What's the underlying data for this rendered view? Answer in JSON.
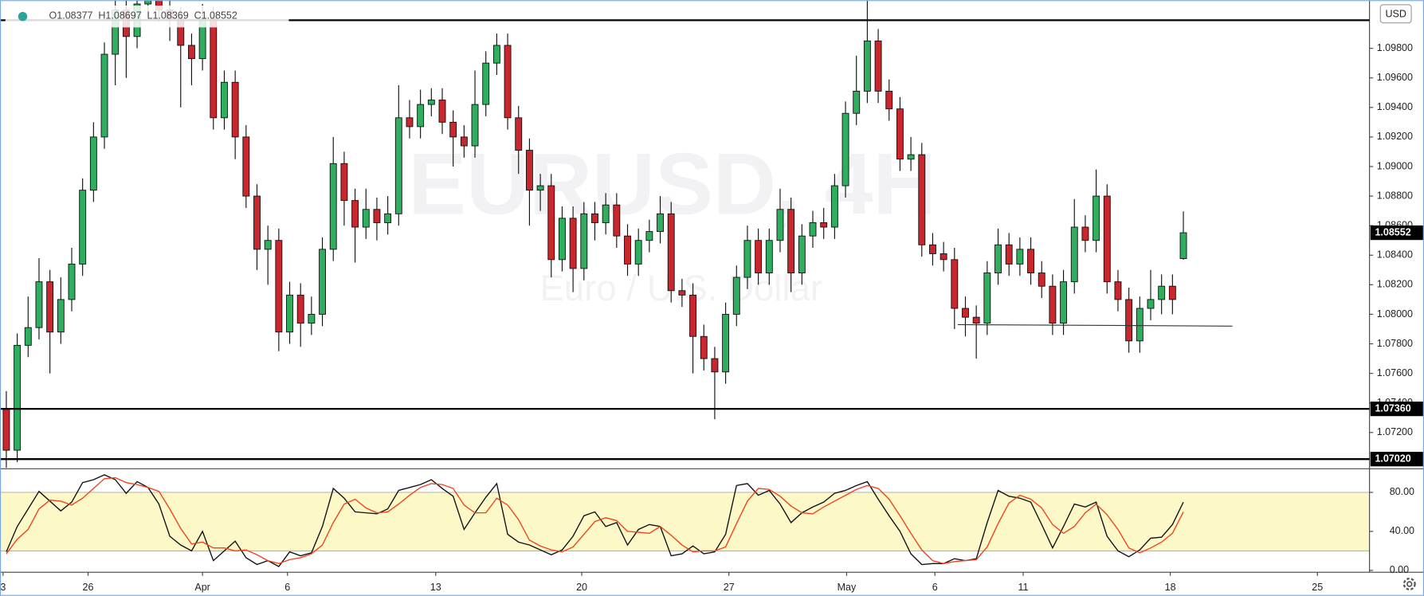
{
  "chart_data": [
    {
      "type": "candlestick",
      "watermark": "EURUSD, 4H",
      "watermark_subtitle": "Euro / U.S. Dollar",
      "ohlc_labels": [
        "O",
        "H",
        "L",
        "C"
      ],
      "currency": "USD",
      "up_color": "#2fae5f",
      "down_color": "#c9272d",
      "xlim": [
        -0.58,
        125.08
      ],
      "ylim": [
        1.06961,
        1.10126
      ],
      "yticks": [
        {
          "value": 1.072,
          "label": "1.07200"
        },
        {
          "value": 1.074,
          "label": "1.07400"
        },
        {
          "value": 1.076,
          "label": "1.07600"
        },
        {
          "value": 1.078,
          "label": "1.07800"
        },
        {
          "value": 1.08,
          "label": "1.08000"
        },
        {
          "value": 1.082,
          "label": "1.08200"
        },
        {
          "value": 1.084,
          "label": "1.08400"
        },
        {
          "value": 1.086,
          "label": "1.08600"
        },
        {
          "value": 1.088,
          "label": "1.08800"
        },
        {
          "value": 1.09,
          "label": "1.09000"
        },
        {
          "value": 1.092,
          "label": "1.09200"
        },
        {
          "value": 1.094,
          "label": "1.09400"
        },
        {
          "value": 1.096,
          "label": "1.09600"
        },
        {
          "value": 1.098,
          "label": "1.09800"
        }
      ],
      "levels": [
        {
          "value": 1.0736,
          "label": "1.07360"
        },
        {
          "value": 1.0702,
          "label": "1.07020"
        },
        {
          "value": 1.0999
        }
      ],
      "trendline": {
        "x": [
          87.3,
          112.5
        ],
        "y": [
          1.0793,
          1.0792
        ]
      },
      "open": [
        1.0736,
        1.0708,
        1.0779,
        1.0791,
        1.0822,
        1.0788,
        1.081,
        1.0834,
        1.0884,
        1.092,
        1.0976,
        1.1006,
        1.0988,
        1.101,
        1.1016,
        1.1006,
        1.1,
        1.0982,
        1.0973,
        1.1,
        1.0933,
        1.0957,
        1.092,
        1.088,
        1.0844,
        1.085,
        1.0788,
        1.0813,
        1.0794,
        1.08,
        1.0844,
        1.0902,
        1.0877,
        1.0859,
        1.0871,
        1.0862,
        1.0868,
        1.0933,
        1.0927,
        1.0942,
        1.0945,
        1.093,
        1.092,
        1.0914,
        1.0942,
        1.097,
        1.0982,
        1.0933,
        1.0911,
        1.0884,
        1.0887,
        1.0837,
        1.0865,
        1.0831,
        1.0868,
        1.0862,
        1.0874,
        1.0853,
        1.0834,
        1.085,
        1.0856,
        1.0868,
        1.0816,
        1.0813,
        1.0785,
        1.077,
        1.0761,
        1.08,
        1.0825,
        1.085,
        1.0828,
        1.085,
        1.0871,
        1.0828,
        1.0853,
        1.0862,
        1.0859,
        1.0887,
        1.0936,
        1.0951,
        1.0985,
        1.0951,
        1.0939,
        1.0905,
        1.0908,
        1.0847,
        1.0841,
        1.0837,
        1.0804,
        1.0798,
        1.0794,
        1.0828,
        1.0847,
        1.0834,
        1.0844,
        1.0828,
        1.0819,
        1.0794,
        1.0822,
        1.0859,
        1.085,
        1.088,
        1.0822,
        1.081,
        1.0782,
        1.0804,
        1.081,
        1.0819,
        1.08377
      ],
      "high": [
        1.0748,
        1.0787,
        1.0812,
        1.0838,
        1.083,
        1.0825,
        1.0845,
        1.0892,
        1.093,
        1.0984,
        1.1014,
        1.1014,
        1.1018,
        1.1024,
        1.1024,
        1.1014,
        1.1008,
        1.099,
        1.101,
        1.1008,
        1.0965,
        1.0965,
        1.0928,
        1.0888,
        1.086,
        1.0858,
        1.0822,
        1.0821,
        1.0812,
        1.0852,
        1.092,
        1.091,
        1.0885,
        1.0885,
        1.0879,
        1.088,
        1.0955,
        1.0945,
        1.0952,
        1.0953,
        1.0953,
        1.0938,
        1.0928,
        1.0965,
        1.0978,
        1.099,
        1.099,
        1.0941,
        1.0919,
        1.0895,
        1.0895,
        1.0873,
        1.0873,
        1.0876,
        1.0876,
        1.0882,
        1.0882,
        1.0861,
        1.0858,
        1.0864,
        1.088,
        1.0876,
        1.0824,
        1.0821,
        1.0793,
        1.0778,
        1.0808,
        1.0833,
        1.086,
        1.0858,
        1.0858,
        1.0885,
        1.0879,
        1.0861,
        1.087,
        1.0872,
        1.0895,
        1.0944,
        1.0975,
        1.1018,
        1.0993,
        1.0959,
        1.0947,
        1.092,
        1.0916,
        1.0855,
        1.0849,
        1.0845,
        1.0812,
        1.0806,
        1.0836,
        1.0858,
        1.0855,
        1.0852,
        1.0852,
        1.0836,
        1.0827,
        1.083,
        1.0878,
        1.0867,
        1.0898,
        1.0888,
        1.083,
        1.0818,
        1.0812,
        1.083,
        1.0827,
        1.0827,
        1.08697
      ],
      "low": [
        1.0696,
        1.07,
        1.0771,
        1.0783,
        1.076,
        1.078,
        1.0802,
        1.0826,
        1.0876,
        1.0912,
        1.0955,
        1.096,
        1.098,
        1.1002,
        1.0998,
        1.0985,
        1.094,
        1.0955,
        1.0965,
        1.0925,
        1.0925,
        1.0905,
        1.0872,
        1.083,
        1.082,
        1.0775,
        1.078,
        1.0778,
        1.0786,
        1.0792,
        1.0836,
        1.086,
        1.0835,
        1.0851,
        1.085,
        1.0854,
        1.086,
        1.0919,
        1.0919,
        1.0934,
        1.0922,
        1.09,
        1.0906,
        1.0906,
        1.0934,
        1.0962,
        1.0925,
        1.0895,
        1.086,
        1.087,
        1.0825,
        1.0829,
        1.0815,
        1.0823,
        1.085,
        1.0854,
        1.0845,
        1.0826,
        1.0826,
        1.0842,
        1.0848,
        1.0808,
        1.0805,
        1.076,
        1.0762,
        1.0729,
        1.0753,
        1.0792,
        1.0817,
        1.082,
        1.082,
        1.0842,
        1.0815,
        1.082,
        1.0845,
        1.0851,
        1.0851,
        1.0879,
        1.0928,
        1.0943,
        1.0943,
        1.0931,
        1.0897,
        1.0897,
        1.0839,
        1.0833,
        1.0829,
        1.079,
        1.0785,
        1.077,
        1.0786,
        1.082,
        1.0826,
        1.0826,
        1.082,
        1.0811,
        1.0786,
        1.0786,
        1.0814,
        1.0842,
        1.0842,
        1.0814,
        1.0802,
        1.0774,
        1.0774,
        1.0796,
        1.08,
        1.08,
        1.08369
      ],
      "close": [
        1.0708,
        1.0779,
        1.0791,
        1.0822,
        1.0788,
        1.081,
        1.0834,
        1.0884,
        1.092,
        1.0976,
        1.1006,
        1.0988,
        1.101,
        1.1016,
        1.1006,
        1.1,
        1.0982,
        1.0973,
        1.1,
        1.0933,
        1.0957,
        1.092,
        1.088,
        1.0844,
        1.085,
        1.0788,
        1.0813,
        1.0794,
        1.08,
        1.0844,
        1.0902,
        1.0877,
        1.0859,
        1.0871,
        1.0862,
        1.0868,
        1.0933,
        1.0927,
        1.0942,
        1.0945,
        1.093,
        1.092,
        1.0914,
        1.0942,
        1.097,
        1.0982,
        1.0933,
        1.0911,
        1.0884,
        1.0887,
        1.0837,
        1.0865,
        1.0831,
        1.0868,
        1.0862,
        1.0874,
        1.0853,
        1.0834,
        1.085,
        1.0856,
        1.0868,
        1.0816,
        1.0813,
        1.0785,
        1.077,
        1.0761,
        1.08,
        1.0825,
        1.085,
        1.0828,
        1.085,
        1.0871,
        1.0828,
        1.0853,
        1.0862,
        1.0859,
        1.0887,
        1.0936,
        1.0951,
        1.0985,
        1.0951,
        1.0939,
        1.0905,
        1.0908,
        1.0847,
        1.0841,
        1.0837,
        1.0804,
        1.0798,
        1.0794,
        1.0828,
        1.0847,
        1.0834,
        1.0844,
        1.0828,
        1.0819,
        1.0794,
        1.0822,
        1.0859,
        1.085,
        1.088,
        1.0822,
        1.081,
        1.0782,
        1.0804,
        1.081,
        1.0819,
        1.081,
        1.08552
      ]
    },
    {
      "type": "line",
      "xlim": [
        -0.58,
        125.08
      ],
      "ylim": [
        -1.9,
        103.3
      ],
      "yticks": [
        {
          "value": 0,
          "label": "0.00"
        },
        {
          "value": 40,
          "label": "40.00"
        },
        {
          "value": 80,
          "label": "80.00"
        }
      ],
      "band": [
        20,
        80
      ],
      "band_color": "#fcf8c8",
      "xticks": [
        {
          "value": -0.3,
          "label": "3"
        },
        {
          "value": 7.5,
          "label": "26"
        },
        {
          "value": 18,
          "label": "Apr"
        },
        {
          "value": 25.8,
          "label": "6"
        },
        {
          "value": 39.4,
          "label": "13"
        },
        {
          "value": 52.8,
          "label": "20"
        },
        {
          "value": 66.3,
          "label": "27"
        },
        {
          "value": 77.1,
          "label": "May"
        },
        {
          "value": 85.2,
          "label": "6"
        },
        {
          "value": 93.3,
          "label": "11"
        },
        {
          "value": 106.8,
          "label": "18"
        },
        {
          "value": 120.3,
          "label": "25"
        }
      ],
      "series": [
        {
          "color": "#111111",
          "values": [
            19,
            45,
            63,
            81,
            71,
            61,
            70,
            90,
            93,
            98,
            93,
            79,
            91,
            85,
            68,
            35,
            26,
            20,
            40,
            10,
            20,
            30,
            13,
            6,
            10,
            4,
            19,
            15,
            18,
            45,
            84,
            74,
            60,
            59,
            58,
            63,
            82,
            85,
            88,
            93,
            84,
            76,
            42,
            59,
            75,
            89,
            37,
            29,
            26,
            21,
            16,
            21,
            35,
            56,
            60,
            45,
            49,
            26,
            42,
            47,
            45,
            15,
            17,
            25,
            17,
            19,
            37,
            87,
            89,
            77,
            82,
            68,
            49,
            59,
            65,
            70,
            79,
            82,
            87,
            91,
            73,
            56,
            40,
            17,
            6,
            7,
            7,
            12,
            10,
            12,
            49,
            82,
            76,
            74,
            70,
            47,
            23,
            45,
            68,
            65,
            70,
            35,
            20,
            14,
            21,
            33,
            34,
            47,
            70
          ]
        },
        {
          "color": "#f0421c",
          "values": [
            17,
            32,
            42,
            63,
            72,
            71,
            67,
            74,
            84,
            94,
            95,
            90,
            88,
            85,
            81,
            63,
            43,
            27,
            29,
            23,
            23,
            20,
            21,
            16,
            10,
            7,
            11,
            13,
            17,
            26,
            49,
            68,
            73,
            64,
            59,
            60,
            68,
            77,
            85,
            89,
            88,
            84,
            67,
            59,
            59,
            74,
            67,
            52,
            31,
            25,
            21,
            19,
            24,
            37,
            50,
            54,
            51,
            40,
            39,
            38,
            45,
            36,
            26,
            19,
            20,
            20,
            24,
            48,
            71,
            84,
            83,
            76,
            66,
            59,
            58,
            65,
            71,
            77,
            83,
            87,
            84,
            73,
            56,
            38,
            21,
            10,
            7,
            9,
            10,
            11,
            24,
            48,
            69,
            77,
            73,
            64,
            47,
            38,
            45,
            59,
            68,
            57,
            42,
            23,
            18,
            23,
            29,
            38,
            60
          ]
        }
      ]
    }
  ]
}
